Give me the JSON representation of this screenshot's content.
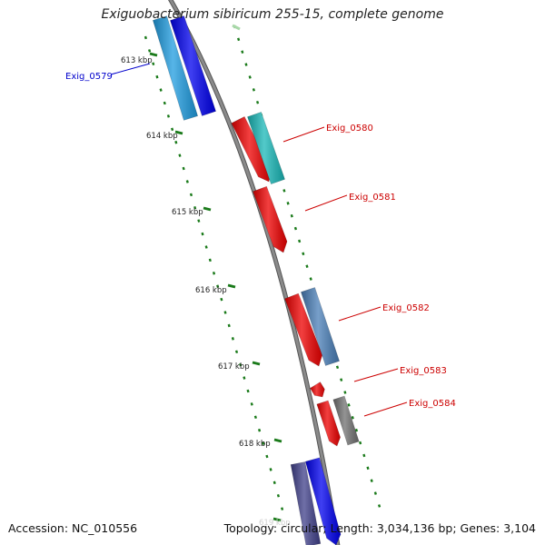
{
  "title": "Exiguobacterium sibiricum 255-15, complete genome",
  "footer": {
    "accession": "Accession: NC_010556",
    "topology": "Topology: circular; Length: 3,034,136 bp; Genes: 3,104"
  },
  "colors": {
    "backbone": "#808080",
    "tick": "#1a7a1a",
    "label_red": "#cc0000",
    "label_blue": "#0000cc"
  },
  "ticks": [
    "613 kbp",
    "614 kbp",
    "615 kbp",
    "616 kbp",
    "617 kbp",
    "618 kbp",
    "619 kbp"
  ],
  "genes": [
    {
      "name": "Exig_0579",
      "color": "#1f9ce0"
    },
    {
      "name": "",
      "color": "#0000ee"
    },
    {
      "name": "",
      "color": "#ee0000"
    },
    {
      "name": "Exig_0580",
      "color": "#19b8b8"
    },
    {
      "name": "Exig_0581",
      "color": "#ee0000"
    },
    {
      "name": "",
      "color": "#ee0000"
    },
    {
      "name": "Exig_0582",
      "color": "#4a7fb8"
    },
    {
      "name": "Exig_0583",
      "color": "#ee0000"
    },
    {
      "name": "",
      "color": "#ee0000"
    },
    {
      "name": "Exig_0584",
      "color": "#707070"
    },
    {
      "name": "",
      "color": "#40408a"
    },
    {
      "name": "",
      "color": "#0000ee"
    }
  ]
}
